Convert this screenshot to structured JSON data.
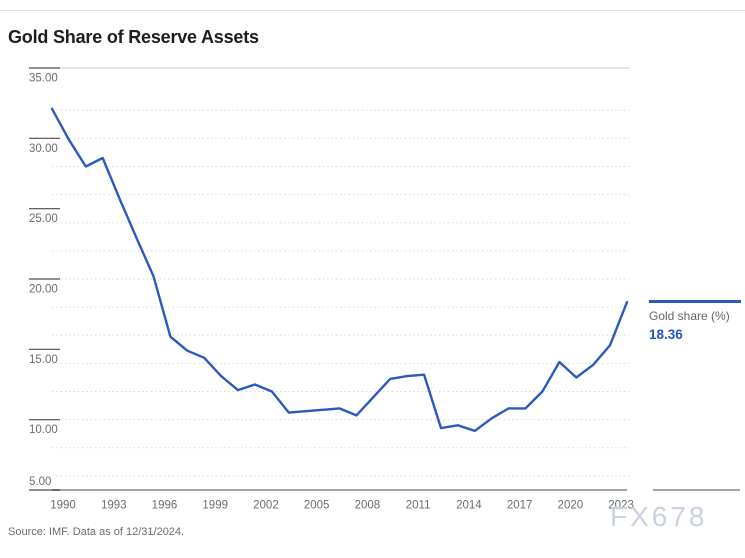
{
  "page": {
    "title": "Gold Share of Reserve Assets",
    "source_note": "Source: IMF. Data as of 12/31/2024.",
    "watermark": "FX678"
  },
  "legend": {
    "label": "Gold share (%)",
    "value": "18.36"
  },
  "colors": {
    "line_blue": "#2b59bd",
    "legend_value_blue": "#2456c0",
    "title_text": "#1d1d1d",
    "axis_text": "#696d70",
    "gridline": "#d9d9d9",
    "plot_border": "#c9c9c9",
    "axis_line": "#a6a6a6",
    "tick_line": "#4c4c4c",
    "watermark": "#c9d2de",
    "divider": "#e4e4e4"
  },
  "chart_data": {
    "type": "line",
    "title": "Gold Share of Reserve Assets",
    "xlabel": "",
    "ylabel": "",
    "xlim": [
      1990,
      2024
    ],
    "ylim": [
      5,
      35
    ],
    "grid": "horizontal dotted every 2 units",
    "grid_values": [
      6,
      8,
      10,
      12,
      14,
      16,
      18,
      20,
      22,
      24,
      26,
      28,
      30,
      32
    ],
    "x_ticks": [
      1990,
      1993,
      1996,
      1999,
      2002,
      2005,
      2008,
      2011,
      2014,
      2017,
      2020,
      2023
    ],
    "y_ticks": [
      35,
      30,
      25,
      20,
      15,
      10,
      5
    ],
    "y_tick_labels": [
      "35.00",
      "30.00",
      "25.00",
      "20.00",
      "15.00",
      "10.00",
      "5.00"
    ],
    "x": [
      1990,
      1991,
      1992,
      1993,
      1994,
      1995,
      1996,
      1997,
      1998,
      1999,
      2000,
      2001,
      2002,
      2003,
      2004,
      2005,
      2006,
      2007,
      2008,
      2009,
      2010,
      2011,
      2012,
      2013,
      2014,
      2015,
      2016,
      2017,
      2018,
      2019,
      2020,
      2021,
      2022,
      2023,
      2024
    ],
    "series": [
      {
        "name": "Gold share (%)",
        "values": [
          32.1,
          29.9,
          28.0,
          28.6,
          25.7,
          22.9,
          20.2,
          15.9,
          14.9,
          14.4,
          13.1,
          12.1,
          12.5,
          12.0,
          10.5,
          10.6,
          10.7,
          10.8,
          10.3,
          11.6,
          12.9,
          13.1,
          13.2,
          9.4,
          9.6,
          9.2,
          10.1,
          10.8,
          10.8,
          12.0,
          14.1,
          13.0,
          13.9,
          15.3,
          18.36
        ]
      }
    ],
    "last_value_label": "18.36",
    "legend_position": "right of line end"
  }
}
